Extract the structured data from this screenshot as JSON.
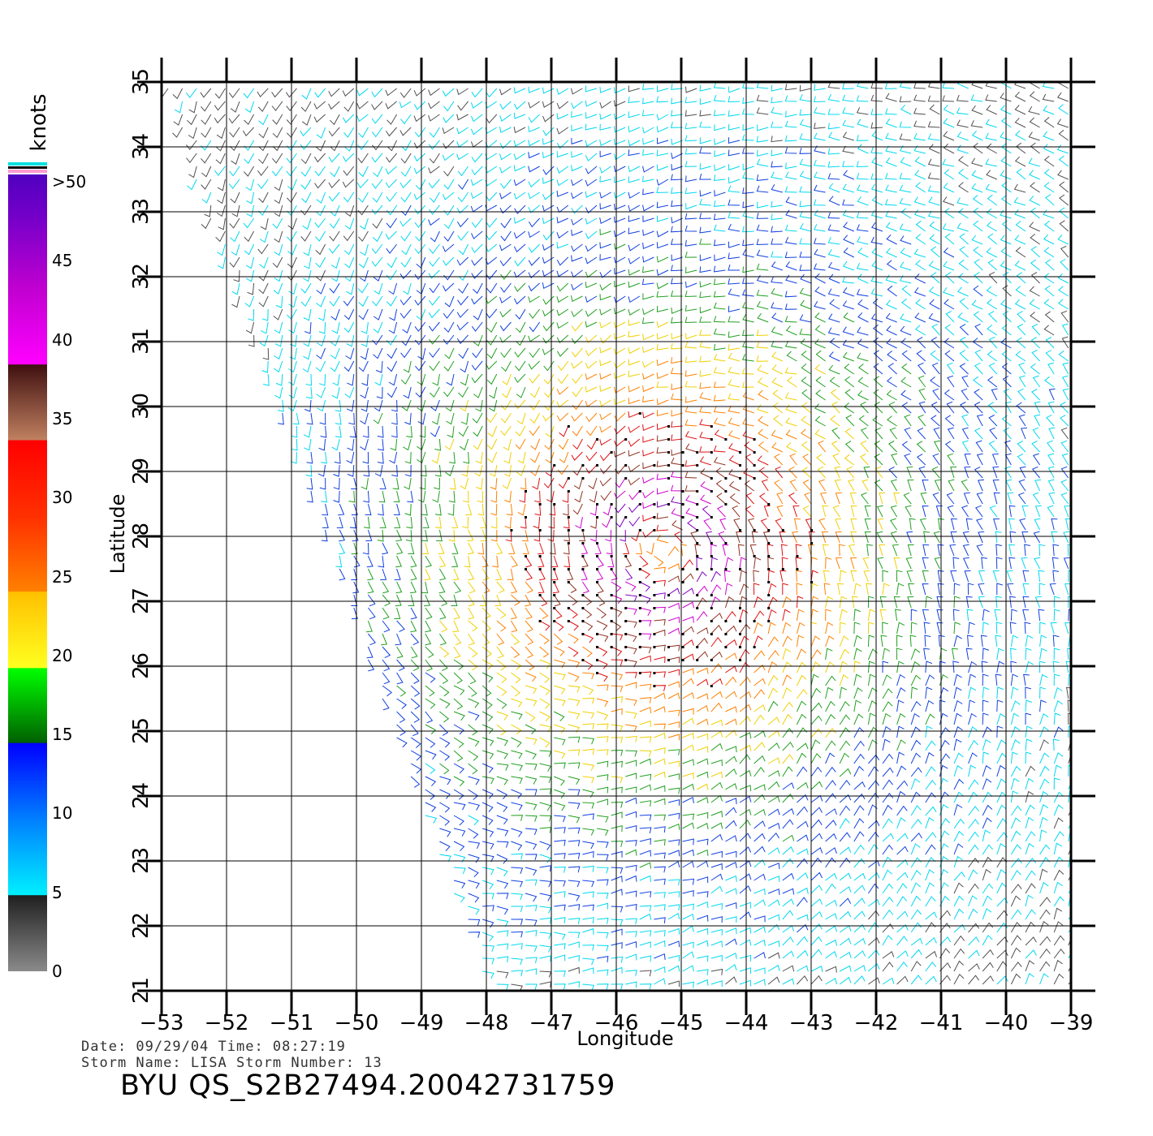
{
  "chart_data": {
    "type": "scatter",
    "subtype": "wind-barb-field",
    "title": "",
    "xlabel": "Longitude",
    "ylabel": "Latitude",
    "xlim": [
      -53,
      -39
    ],
    "ylim": [
      21,
      35
    ],
    "x_ticks": [
      -53,
      -52,
      -51,
      -50,
      -49,
      -48,
      -47,
      -46,
      -45,
      -44,
      -43,
      -42,
      -41,
      -40,
      -39
    ],
    "y_ticks": [
      21,
      22,
      23,
      24,
      25,
      26,
      27,
      28,
      29,
      30,
      31,
      32,
      33,
      34,
      35
    ],
    "grid": true,
    "storm_center": {
      "lon": -45.3,
      "lat": 27.8
    },
    "colorbar": {
      "unit": "knots",
      "bins": [
        {
          "label": "0",
          "value": 0,
          "color": "#808080"
        },
        {
          "label": "5",
          "value": 5,
          "color": "#00e5ff"
        },
        {
          "label": "10",
          "value": 10,
          "color": "#1e64ff"
        },
        {
          "label": "15",
          "value": 15,
          "color": "#006400"
        },
        {
          "label": "20",
          "value": 20,
          "color": "#ffff00"
        },
        {
          "label": "25",
          "value": 25,
          "color": "#ff8000"
        },
        {
          "label": "30",
          "value": 30,
          "color": "#ff0000"
        },
        {
          "label": "35",
          "value": 35,
          "color": "#c07850"
        },
        {
          "label": "40",
          "value": 40,
          "color": "#ff00ff"
        },
        {
          "label": "45",
          "value": 45,
          "color": "#a000c8"
        },
        {
          "label": ">50",
          "value": 50,
          "color": "#6000c0"
        }
      ]
    }
  },
  "info": {
    "date_line": "Date:  09/29/04   Time:  08:27:19",
    "storm_line": "Storm  Name:  LISA    Storm  Number:  13",
    "product_id": "BYU  QS_S2B27494.20042731759"
  }
}
